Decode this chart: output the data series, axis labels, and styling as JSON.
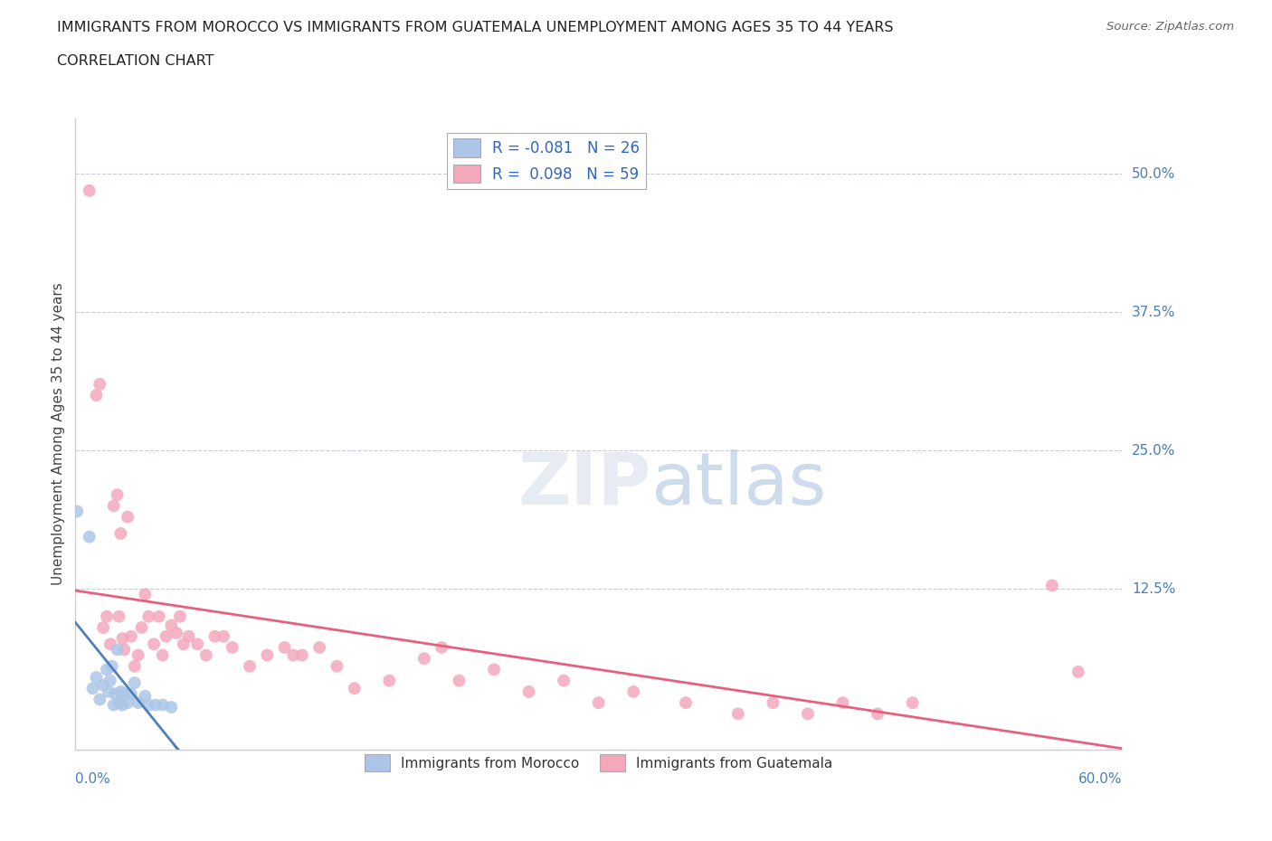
{
  "title_line1": "IMMIGRANTS FROM MOROCCO VS IMMIGRANTS FROM GUATEMALA UNEMPLOYMENT AMONG AGES 35 TO 44 YEARS",
  "title_line2": "CORRELATION CHART",
  "source": "Source: ZipAtlas.com",
  "ylabel": "Unemployment Among Ages 35 to 44 years",
  "ytick_labels": [
    "50.0%",
    "37.5%",
    "25.0%",
    "12.5%"
  ],
  "ytick_values": [
    0.5,
    0.375,
    0.25,
    0.125
  ],
  "xlim": [
    0.0,
    0.6
  ],
  "ylim": [
    -0.02,
    0.55
  ],
  "morocco_R": -0.081,
  "morocco_N": 26,
  "guatemala_R": 0.098,
  "guatemala_N": 59,
  "morocco_color": "#adc6e8",
  "guatemala_color": "#f4a8bc",
  "morocco_line_color": "#5080b8",
  "guatemala_line_color": "#e86080",
  "background_color": "#ffffff",
  "grid_color": "#c8ccd8",
  "watermark_color": "#d4dff0",
  "morocco_scatter": [
    [
      0.001,
      0.195
    ],
    [
      0.008,
      0.172
    ],
    [
      0.01,
      0.035
    ],
    [
      0.012,
      0.045
    ],
    [
      0.014,
      0.025
    ],
    [
      0.016,
      0.038
    ],
    [
      0.018,
      0.052
    ],
    [
      0.019,
      0.032
    ],
    [
      0.02,
      0.042
    ],
    [
      0.021,
      0.055
    ],
    [
      0.022,
      0.02
    ],
    [
      0.023,
      0.03
    ],
    [
      0.024,
      0.07
    ],
    [
      0.025,
      0.022
    ],
    [
      0.026,
      0.032
    ],
    [
      0.027,
      0.02
    ],
    [
      0.028,
      0.03
    ],
    [
      0.03,
      0.022
    ],
    [
      0.032,
      0.03
    ],
    [
      0.034,
      0.04
    ],
    [
      0.036,
      0.022
    ],
    [
      0.04,
      0.028
    ],
    [
      0.042,
      0.02
    ],
    [
      0.046,
      0.02
    ],
    [
      0.05,
      0.02
    ],
    [
      0.055,
      0.018
    ]
  ],
  "guatemala_scatter": [
    [
      0.008,
      0.485
    ],
    [
      0.012,
      0.3
    ],
    [
      0.014,
      0.31
    ],
    [
      0.016,
      0.09
    ],
    [
      0.018,
      0.1
    ],
    [
      0.02,
      0.075
    ],
    [
      0.022,
      0.2
    ],
    [
      0.024,
      0.21
    ],
    [
      0.025,
      0.1
    ],
    [
      0.026,
      0.175
    ],
    [
      0.027,
      0.08
    ],
    [
      0.028,
      0.07
    ],
    [
      0.03,
      0.19
    ],
    [
      0.032,
      0.082
    ],
    [
      0.034,
      0.055
    ],
    [
      0.036,
      0.065
    ],
    [
      0.038,
      0.09
    ],
    [
      0.04,
      0.12
    ],
    [
      0.042,
      0.1
    ],
    [
      0.045,
      0.075
    ],
    [
      0.048,
      0.1
    ],
    [
      0.05,
      0.065
    ],
    [
      0.052,
      0.082
    ],
    [
      0.055,
      0.092
    ],
    [
      0.058,
      0.085
    ],
    [
      0.06,
      0.1
    ],
    [
      0.062,
      0.075
    ],
    [
      0.065,
      0.082
    ],
    [
      0.07,
      0.075
    ],
    [
      0.075,
      0.065
    ],
    [
      0.08,
      0.082
    ],
    [
      0.085,
      0.082
    ],
    [
      0.09,
      0.072
    ],
    [
      0.1,
      0.055
    ],
    [
      0.11,
      0.065
    ],
    [
      0.12,
      0.072
    ],
    [
      0.125,
      0.065
    ],
    [
      0.13,
      0.065
    ],
    [
      0.14,
      0.072
    ],
    [
      0.15,
      0.055
    ],
    [
      0.16,
      0.035
    ],
    [
      0.18,
      0.042
    ],
    [
      0.2,
      0.062
    ],
    [
      0.21,
      0.072
    ],
    [
      0.22,
      0.042
    ],
    [
      0.24,
      0.052
    ],
    [
      0.26,
      0.032
    ],
    [
      0.28,
      0.042
    ],
    [
      0.3,
      0.022
    ],
    [
      0.32,
      0.032
    ],
    [
      0.35,
      0.022
    ],
    [
      0.38,
      0.012
    ],
    [
      0.4,
      0.022
    ],
    [
      0.42,
      0.012
    ],
    [
      0.44,
      0.022
    ],
    [
      0.46,
      0.012
    ],
    [
      0.48,
      0.022
    ],
    [
      0.56,
      0.128
    ],
    [
      0.575,
      0.05
    ]
  ]
}
